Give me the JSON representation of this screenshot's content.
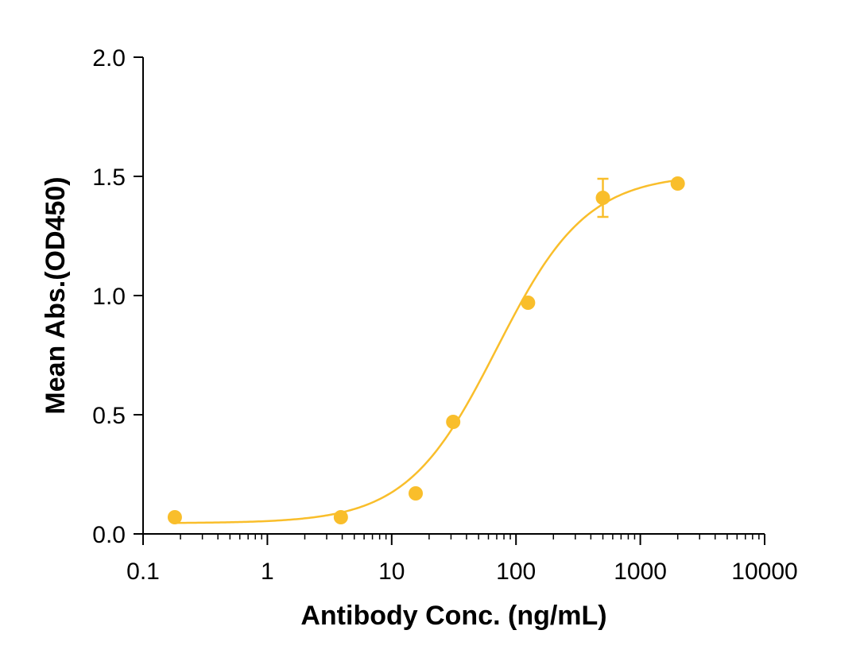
{
  "chart_data": {
    "type": "scatter",
    "title": "",
    "xlabel": "Antibody Conc. (ng/mL)",
    "ylabel": "Mean Abs.(OD450)",
    "x_scale": "log",
    "xlim": [
      0.1,
      10000
    ],
    "ylim": [
      0,
      2.0
    ],
    "x_ticks": [
      0.1,
      1,
      10,
      100,
      1000,
      10000
    ],
    "x_tick_labels": [
      "0.1",
      "1",
      "10",
      "100",
      "1000",
      "10000"
    ],
    "y_ticks": [
      0,
      0.5,
      1.0,
      1.5,
      2.0
    ],
    "y_tick_labels": [
      "0.0",
      "0.5",
      "1.0",
      "1.5",
      "2.0"
    ],
    "grid": false,
    "color": "#F9BE2B",
    "series": [
      {
        "x": [
          0.18,
          3.9,
          15.6,
          31.25,
          125,
          500,
          2000
        ],
        "y": [
          0.07,
          0.07,
          0.17,
          0.47,
          0.97,
          1.41,
          1.47
        ],
        "error": [
          0,
          0,
          0,
          0,
          0,
          0.08,
          0
        ]
      }
    ],
    "fit_curve": {
      "model": "4PL",
      "bottom": 0.045,
      "top": 1.51,
      "ec50": 70,
      "hill": 1.2
    }
  }
}
